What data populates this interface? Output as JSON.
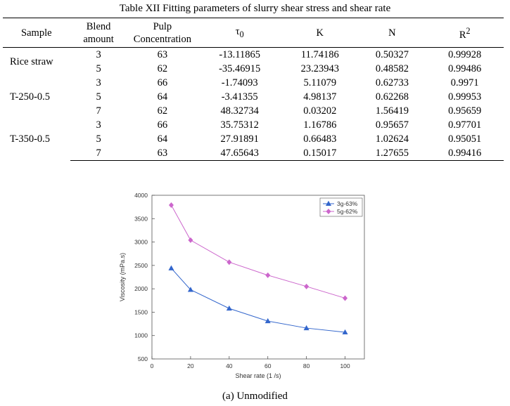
{
  "table": {
    "caption": "Table XII Fitting parameters of slurry shear stress and shear rate",
    "headers": {
      "sample": "Sample",
      "blend_line1": "Blend",
      "blend_line2": "amount",
      "pulp_line1": "Pulp",
      "pulp_line2": "Concentration",
      "tau": "τ",
      "tau_sub": "0",
      "k": "K",
      "n": "N",
      "r": "R",
      "r_sup": "2"
    },
    "rows": [
      {
        "sample": "Rice straw",
        "blend": "3",
        "pulp": "63",
        "tau0": "-13.11865",
        "k": "11.74186",
        "n": "0.50327",
        "r2": "0.99928"
      },
      {
        "sample": "",
        "blend": "5",
        "pulp": "62",
        "tau0": "-35.46915",
        "k": "23.23943",
        "n": "0.48582",
        "r2": "0.99486"
      },
      {
        "sample": "",
        "blend": "3",
        "pulp": "66",
        "tau0": "-1.74093",
        "k": "5.11079",
        "n": "0.62733",
        "r2": "0.9971"
      },
      {
        "sample": "T-250-0.5",
        "blend": "5",
        "pulp": "64",
        "tau0": "-3.41355",
        "k": "4.98137",
        "n": "0.62268",
        "r2": "0.99953"
      },
      {
        "sample": "",
        "blend": "7",
        "pulp": "62",
        "tau0": "48.32734",
        "k": "0.03202",
        "n": "1.56419",
        "r2": "0.95659"
      },
      {
        "sample": "",
        "blend": "3",
        "pulp": "66",
        "tau0": "35.75312",
        "k": "1.16786",
        "n": "0.95657",
        "r2": "0.97701"
      },
      {
        "sample": "T-350-0.5",
        "blend": "5",
        "pulp": "64",
        "tau0": "27.91891",
        "k": "0.66483",
        "n": "1.02624",
        "r2": "0.95051"
      },
      {
        "sample": "",
        "blend": "7",
        "pulp": "63",
        "tau0": "47.65643",
        "k": "0.15017",
        "n": "1.27655",
        "r2": "0.99416"
      }
    ]
  },
  "figure_caption": "(a) Unmodified",
  "chart_data": {
    "type": "line",
    "xlabel": "Shear rate (1 /s)",
    "ylabel": "Viscosity (mPa.s)",
    "xlim": [
      0,
      110
    ],
    "ylim": [
      500,
      4000
    ],
    "xticks": [
      0,
      20,
      40,
      60,
      80,
      100
    ],
    "yticks": [
      500,
      1000,
      1500,
      2000,
      2500,
      3000,
      3500,
      4000
    ],
    "x": [
      10,
      20,
      40,
      60,
      80,
      100
    ],
    "grid": false,
    "legend_position": "top-right",
    "series": [
      {
        "name": "3g-63%",
        "marker": "triangle",
        "color": "#3366cc",
        "values": [
          2440,
          1980,
          1580,
          1310,
          1160,
          1070
        ]
      },
      {
        "name": "5g-62%",
        "marker": "diamond",
        "color": "#cc66cc",
        "values": [
          3790,
          3040,
          2570,
          2290,
          2050,
          1800
        ]
      }
    ]
  }
}
